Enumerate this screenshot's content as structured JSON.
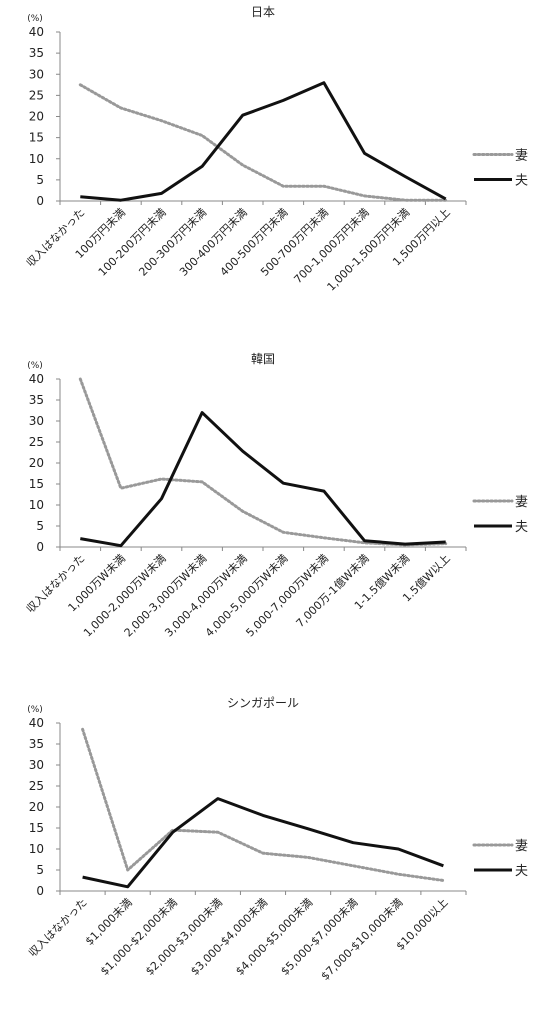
{
  "chart_data": [
    {
      "type": "line",
      "title": "日本",
      "unit": "(%)",
      "categories": [
        "収入はなかった",
        "100万円未満",
        "100-200万円未満",
        "200-300万円未満",
        "300-400万円未満",
        "400-500万円未満",
        "500-700万円未満",
        "700-1,000万円未満",
        "1,000-1,500万円未満",
        "1,500万円以上"
      ],
      "ylim": [
        0,
        40
      ],
      "yticks": [
        0,
        5,
        10,
        15,
        20,
        25,
        30,
        35,
        40
      ],
      "grid": false,
      "legend": "right",
      "series": [
        {
          "name": "妻",
          "style": "dotted",
          "color": "#999999",
          "values": [
            27.5,
            22,
            19,
            15.5,
            8.5,
            3.5,
            3.5,
            1.2,
            0.2,
            0.2
          ]
        },
        {
          "name": "夫",
          "style": "solid",
          "color": "#111111",
          "values": [
            1,
            0.2,
            1.8,
            8.2,
            20.3,
            23.8,
            28,
            11.3,
            5.8,
            0.5
          ]
        }
      ]
    },
    {
      "type": "line",
      "title": "韓国",
      "unit": "(%)",
      "categories": [
        "収入はなかった",
        "1,000万W未満",
        "1,000-2,000万W未満",
        "2,000-3,000万W未満",
        "3,000-4,000万W未満",
        "4,000-5,000万W未満",
        "5,000-7,000万W未満",
        "7,000万-1億W未満",
        "1-1.5億W未満",
        "1.5億W以上"
      ],
      "ylim": [
        0,
        40
      ],
      "yticks": [
        0,
        5,
        10,
        15,
        20,
        25,
        30,
        35,
        40
      ],
      "grid": false,
      "legend": "right",
      "series": [
        {
          "name": "妻",
          "style": "dotted",
          "color": "#999999",
          "values": [
            40,
            14,
            16.2,
            15.5,
            8.5,
            3.5,
            2.2,
            1,
            0.5,
            0.8
          ]
        },
        {
          "name": "夫",
          "style": "solid",
          "color": "#111111",
          "values": [
            2,
            0.3,
            11.5,
            32,
            22.8,
            15.2,
            13.3,
            1.5,
            0.7,
            1.2
          ]
        }
      ]
    },
    {
      "type": "line",
      "title": "シンガポール",
      "unit": "(%)",
      "categories": [
        "収入はなかった",
        "$1,000未満",
        "$1,000-$2,000未満",
        "$2,000-$3,000未満",
        "$3,000-$4,000未満",
        "$4,000-$5,000未満",
        "$5,000-$7,000未満",
        "$7,000-$10,000未満",
        "$10,000以上"
      ],
      "ylim": [
        0,
        40
      ],
      "yticks": [
        0,
        5,
        10,
        15,
        20,
        25,
        30,
        35,
        40
      ],
      "grid": false,
      "legend": "right",
      "series": [
        {
          "name": "妻",
          "style": "dotted",
          "color": "#999999",
          "values": [
            38.5,
            5,
            14.5,
            14,
            9,
            8,
            6,
            4,
            2.5
          ]
        },
        {
          "name": "夫",
          "style": "solid",
          "color": "#111111",
          "values": [
            3.3,
            1,
            14,
            22,
            18,
            14.8,
            11.5,
            10,
            6
          ]
        }
      ]
    }
  ]
}
